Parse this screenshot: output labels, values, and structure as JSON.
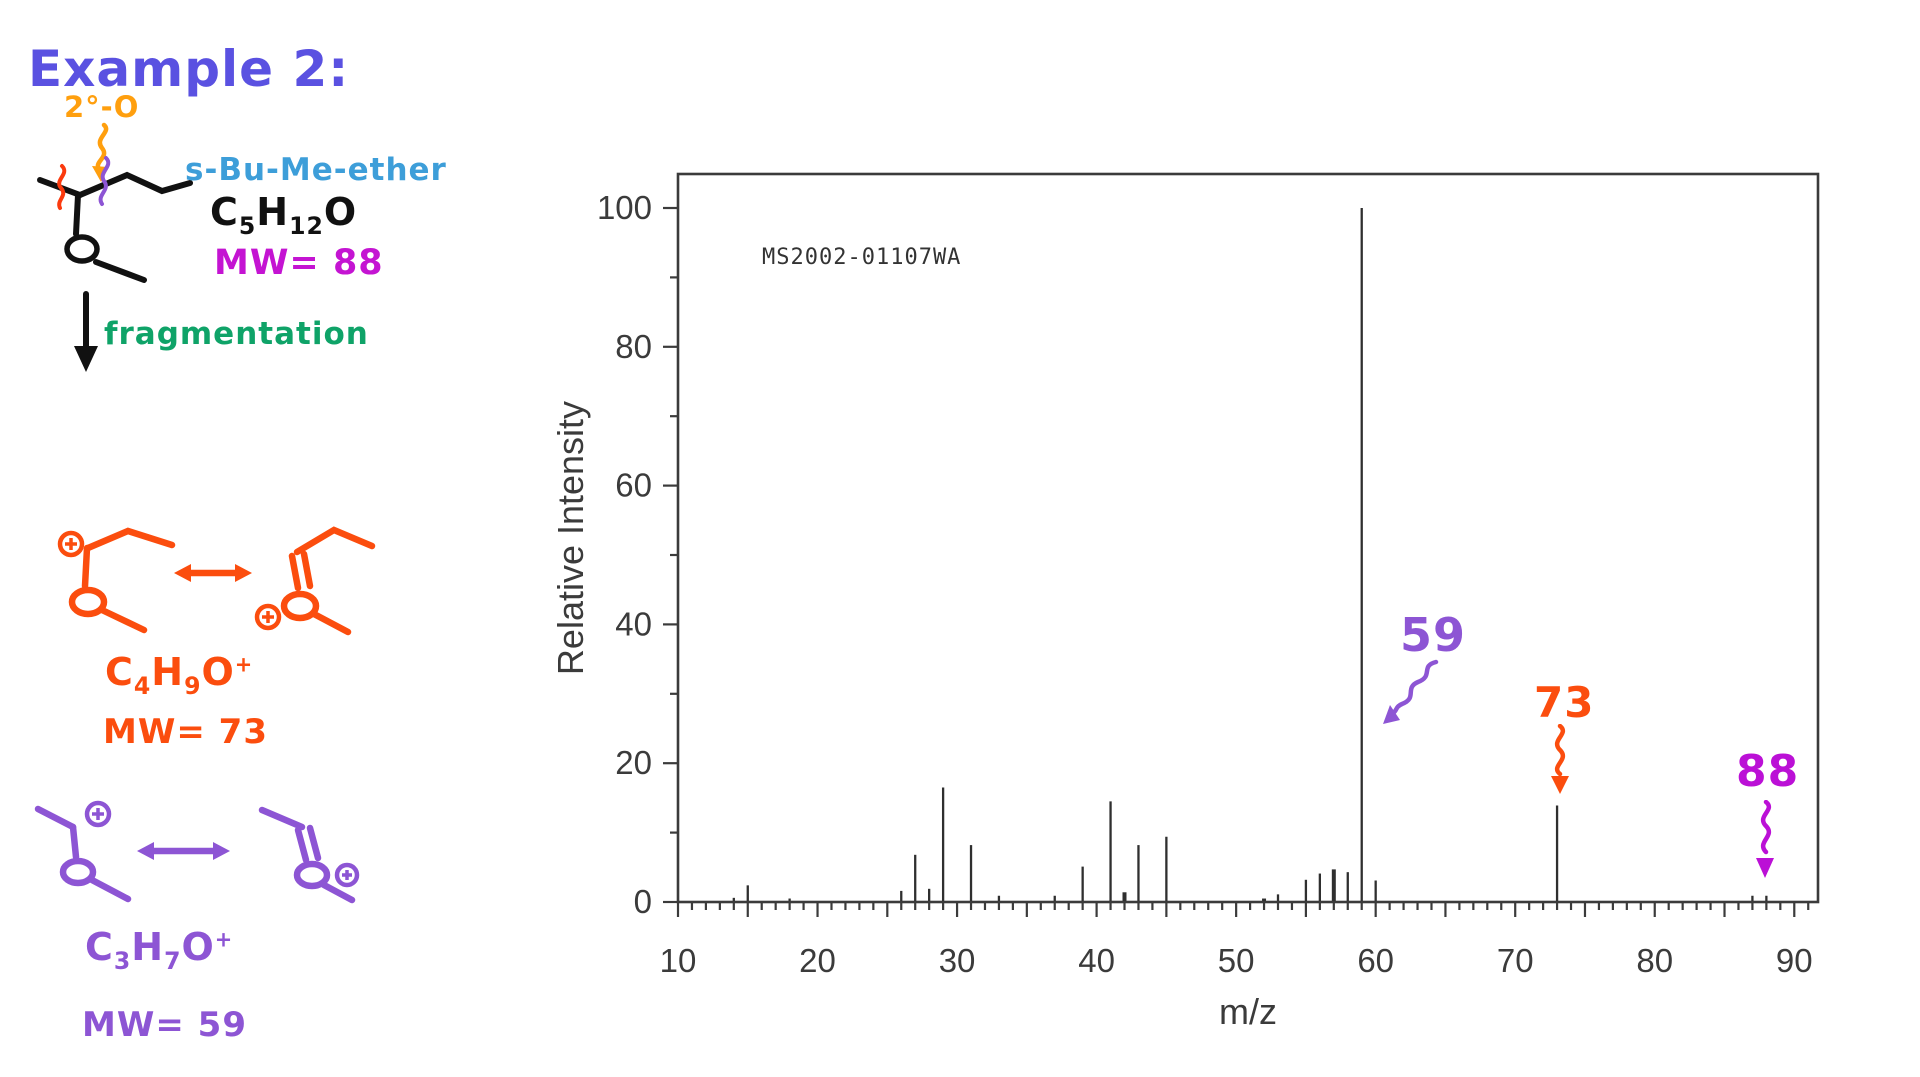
{
  "header": {
    "title": "Example 2:"
  },
  "molecule": {
    "cleavage_label": "2°-O",
    "name": "s-Bu-Me-ether",
    "formula": {
      "f1": "C",
      "f1s": "5",
      "f2": "H",
      "f2s": "12",
      "f3": "O"
    },
    "mw_label": "MW= 88"
  },
  "process": {
    "label": "fragmentation"
  },
  "fragments": [
    {
      "formula": {
        "f1": "C",
        "f1s": "4",
        "f2": "H",
        "f2s": "9",
        "f3": "O",
        "charge": "+"
      },
      "mw_label": "MW= 73",
      "color": "#fb4d0e"
    },
    {
      "formula": {
        "f1": "C",
        "f1s": "3",
        "f2": "H",
        "f2s": "7",
        "f3": "O",
        "charge": "+"
      },
      "mw_label": "MW= 59",
      "color": "#8d55d4"
    }
  ],
  "ink_colors": {
    "title_blue": "#5a51e1",
    "cleavage_orange": "#ff9f0e",
    "name_sky_blue": "#3d9ed9",
    "mw_magenta": "#c414d2",
    "fragmentation_green": "#0fa368",
    "fragment73_orange_red": "#fb4d0e",
    "fragment59_purple": "#8d55d4",
    "bond_squiggle_red": "#fb3a0e",
    "bond_squiggle_purple": "#8d55d4"
  },
  "chart_data": {
    "type": "bar",
    "subtype": "mass-spectrum-stick-plot",
    "watermark": "MS2002-01107WA",
    "xlabel": "m/z",
    "ylabel": "Relative Intensity",
    "xlim": [
      10,
      91.7
    ],
    "ylim": [
      0,
      105
    ],
    "grid": false,
    "x_tick_labels": [
      10,
      20,
      30,
      40,
      50,
      60,
      70,
      80,
      90
    ],
    "x_major_tick_step": 5,
    "x_minor_tick_step": 1,
    "y_tick_labels": [
      0,
      20,
      40,
      60,
      80,
      100
    ],
    "y_minor_tick_step": 10,
    "peaks": [
      {
        "mz": 14,
        "i": 0.6
      },
      {
        "mz": 15,
        "i": 2.4
      },
      {
        "mz": 18,
        "i": 0.5
      },
      {
        "mz": 26,
        "i": 1.6
      },
      {
        "mz": 27,
        "i": 6.8
      },
      {
        "mz": 28,
        "i": 1.9
      },
      {
        "mz": 29,
        "i": 16.5
      },
      {
        "mz": 31,
        "i": 8.2
      },
      {
        "mz": 33,
        "i": 0.9
      },
      {
        "mz": 37,
        "i": 0.9
      },
      {
        "mz": 39,
        "i": 5.1
      },
      {
        "mz": 41,
        "i": 14.5
      },
      {
        "mz": 42,
        "i": 1.4,
        "w": 4
      },
      {
        "mz": 43,
        "i": 8.2
      },
      {
        "mz": 45,
        "i": 9.4
      },
      {
        "mz": 52,
        "i": 0.5,
        "w": 4
      },
      {
        "mz": 53,
        "i": 1.1
      },
      {
        "mz": 55,
        "i": 3.2
      },
      {
        "mz": 56,
        "i": 4.1
      },
      {
        "mz": 57,
        "i": 4.7,
        "w": 4
      },
      {
        "mz": 58,
        "i": 4.3
      },
      {
        "mz": 59,
        "i": 100
      },
      {
        "mz": 60,
        "i": 3.1
      },
      {
        "mz": 73,
        "i": 13.9
      },
      {
        "mz": 87,
        "i": 0.9
      },
      {
        "mz": 88,
        "i": 0.9
      }
    ],
    "annotations": [
      {
        "label": "59",
        "mz": 59,
        "color": "#8d55d4"
      },
      {
        "label": "73",
        "mz": 73,
        "color": "#fb4d0e"
      },
      {
        "label": "88",
        "mz": 88,
        "color": "#bb10d6"
      }
    ]
  }
}
